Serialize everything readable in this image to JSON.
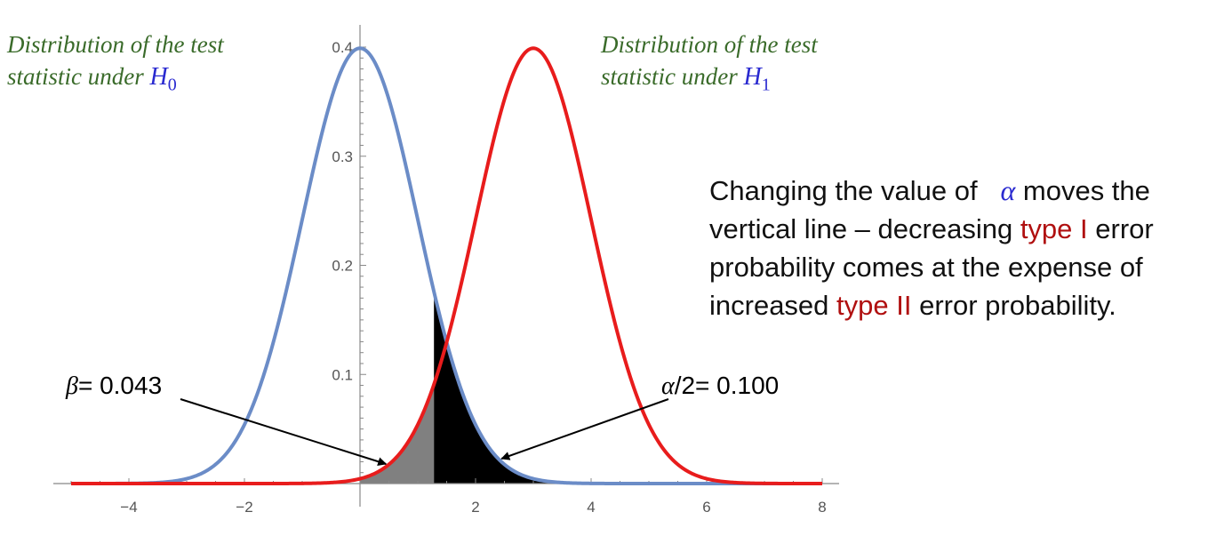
{
  "captions": {
    "h0_line1": "Distribution of the test",
    "h0_line2": "statistic under",
    "h0_symbol": "H",
    "h0_sub": "0",
    "h1_line1": "Distribution of the test",
    "h1_line2": "statistic under",
    "h1_symbol": "H",
    "h1_sub": "1"
  },
  "note": {
    "part1": "Changing the value of",
    "alpha_symbol": "α",
    "part2": "moves the vertical line – decreasing",
    "type1": "type I",
    "part3": "error probability comes at the expense of increased",
    "type2": "type II",
    "part4": "error probability."
  },
  "chart_data": {
    "type": "line",
    "xlim": [
      -5,
      8
    ],
    "ylim": [
      0,
      0.4
    ],
    "x_ticks": [
      "−4",
      "−2",
      "2",
      "4",
      "6",
      "8"
    ],
    "y_ticks": [
      "0.1",
      "0.2",
      "0.3",
      "0.4"
    ],
    "series": [
      {
        "distribution": "normal",
        "mean": 0,
        "sd": 1,
        "color": "#6b8cc7"
      },
      {
        "distribution": "normal",
        "mean": 3,
        "sd": 1,
        "color": "#e81c1c"
      }
    ],
    "critical_value": 1.28,
    "beta_region_color": "#808080",
    "alpha_region_color": "#000000",
    "annotations": {
      "beta": {
        "symbol": "β",
        "text": "= 0.043",
        "points_to_x": 0.45
      },
      "alpha": {
        "symbol": "α",
        "text": "/2= 0.100",
        "points_to_x": 2.45
      }
    }
  }
}
